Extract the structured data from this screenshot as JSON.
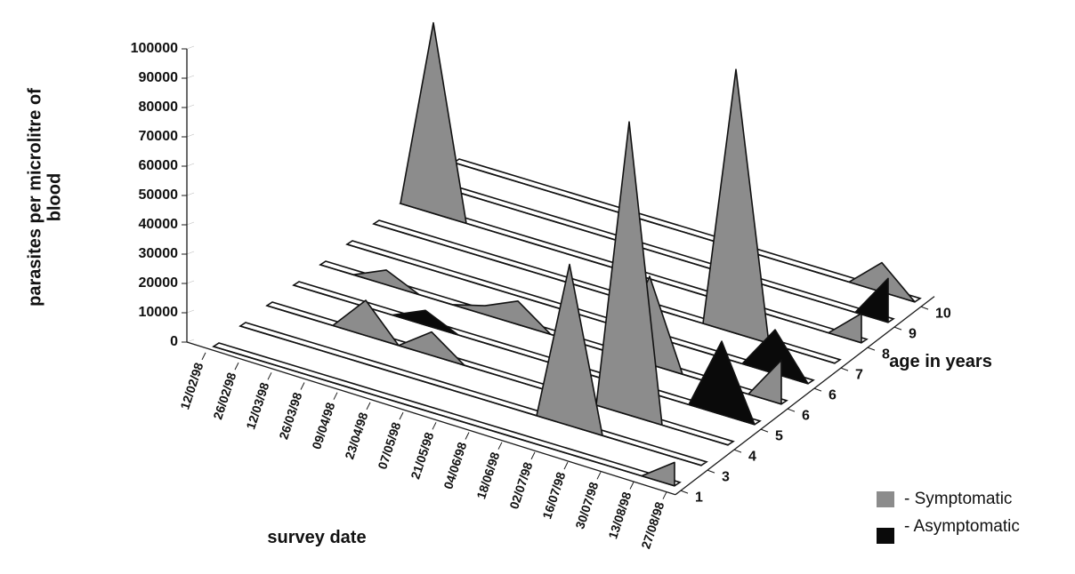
{
  "chart_data": {
    "type": "area",
    "projection": "3d",
    "ylabel": "parasites per microlitre of blood",
    "xlabel": "survey date",
    "zlabel": "age in years",
    "ylim": [
      0,
      100000
    ],
    "yticks": [
      "0",
      "10000",
      "20000",
      "30000",
      "40000",
      "50000",
      "60000",
      "70000",
      "80000",
      "90000",
      "100000"
    ],
    "categories": [
      "12/02/98",
      "26/02/98",
      "12/03/98",
      "26/03/98",
      "09/04/98",
      "23/04/98",
      "07/05/98",
      "21/05/98",
      "04/06/98",
      "18/06/98",
      "02/07/98",
      "16/07/98",
      "30/07/98",
      "13/08/98",
      "27/08/98"
    ],
    "depth_ticks": [
      "1",
      "3",
      "4",
      "5",
      "6",
      "6",
      "7",
      "8",
      "9",
      "10"
    ],
    "legend": [
      {
        "label": "- Symptomatic",
        "color": "#8c8c8c"
      },
      {
        "label": "- Asymptomatic",
        "color": "#0a0a0a"
      }
    ],
    "series": [
      {
        "name": "1",
        "status": "Symptomatic",
        "values": [
          0,
          0,
          0,
          0,
          0,
          0,
          0,
          0,
          0,
          0,
          0,
          0,
          0,
          0,
          8000
        ]
      },
      {
        "name": "3",
        "status": "Symptomatic",
        "values": [
          0,
          0,
          0,
          0,
          0,
          0,
          0,
          0,
          0,
          0,
          55000,
          0,
          0,
          0,
          0
        ]
      },
      {
        "name": "4",
        "status": "Symptomatic",
        "values": [
          0,
          0,
          0,
          12000,
          0,
          8000,
          0,
          0,
          0,
          0,
          0,
          100000,
          0,
          0,
          0
        ]
      },
      {
        "name": "5",
        "status": "Asymptomatic",
        "values": [
          0,
          0,
          0,
          0,
          5000,
          0,
          0,
          0,
          0,
          0,
          0,
          0,
          0,
          25000,
          0
        ]
      },
      {
        "name": "6",
        "status": "Symptomatic",
        "values": [
          0,
          0,
          5000,
          0,
          0,
          3000,
          8000,
          0,
          0,
          0,
          30000,
          0,
          0,
          0,
          15000
        ]
      },
      {
        "name": "6",
        "status": "Asymptomatic",
        "values": [
          0,
          0,
          0,
          0,
          0,
          0,
          0,
          0,
          0,
          0,
          0,
          0,
          0,
          15000,
          0
        ]
      },
      {
        "name": "7",
        "status": "Symptomatic",
        "values": [
          0,
          0,
          0,
          0,
          0,
          0,
          0,
          0,
          0,
          0,
          0,
          90000,
          0,
          0,
          0
        ]
      },
      {
        "name": "8",
        "status": "Symptomatic",
        "values": [
          0,
          65000,
          0,
          0,
          0,
          0,
          0,
          0,
          0,
          0,
          0,
          0,
          0,
          0,
          10000
        ]
      },
      {
        "name": "9",
        "status": "Asymptomatic",
        "values": [
          0,
          0,
          0,
          0,
          0,
          0,
          0,
          0,
          0,
          0,
          0,
          0,
          0,
          0,
          15000
        ]
      },
      {
        "name": "10",
        "status": "Symptomatic",
        "values": [
          0,
          0,
          0,
          0,
          0,
          0,
          0,
          0,
          0,
          0,
          0,
          0,
          0,
          10000,
          0
        ]
      }
    ]
  }
}
